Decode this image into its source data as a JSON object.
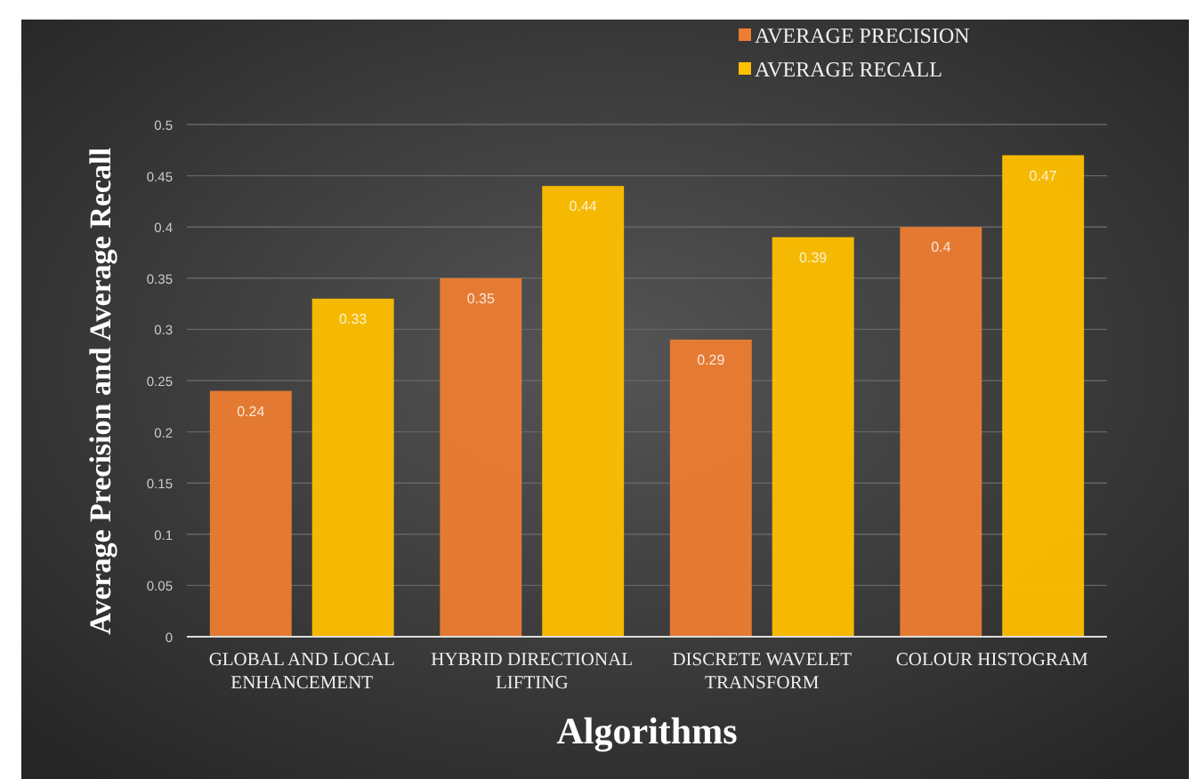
{
  "chart_data": {
    "type": "bar",
    "xlabel": "Algorithms",
    "ylabel": "Average Precision and Average Recall",
    "categories": [
      "GLOBAL AND LOCAL ENHANCEMENT",
      "HYBRID DIRECTIONAL LIFTING",
      "DISCRETE WAVELET TRANSFORM",
      "COLOUR HISTOGRAM"
    ],
    "series": [
      {
        "name": "AVERAGE PRECISION",
        "color": "#ed7d31",
        "values": [
          0.24,
          0.35,
          0.29,
          0.4
        ]
      },
      {
        "name": "AVERAGE RECALL",
        "color": "#ffc000",
        "values": [
          0.33,
          0.44,
          0.39,
          0.47
        ]
      }
    ],
    "ylim": [
      0,
      0.5
    ],
    "yticks": [
      0,
      0.05,
      0.1,
      0.15,
      0.2,
      0.25,
      0.3,
      0.35,
      0.4,
      0.45,
      0.5
    ],
    "grid": "y",
    "legend": "top right",
    "data_labels": true
  }
}
